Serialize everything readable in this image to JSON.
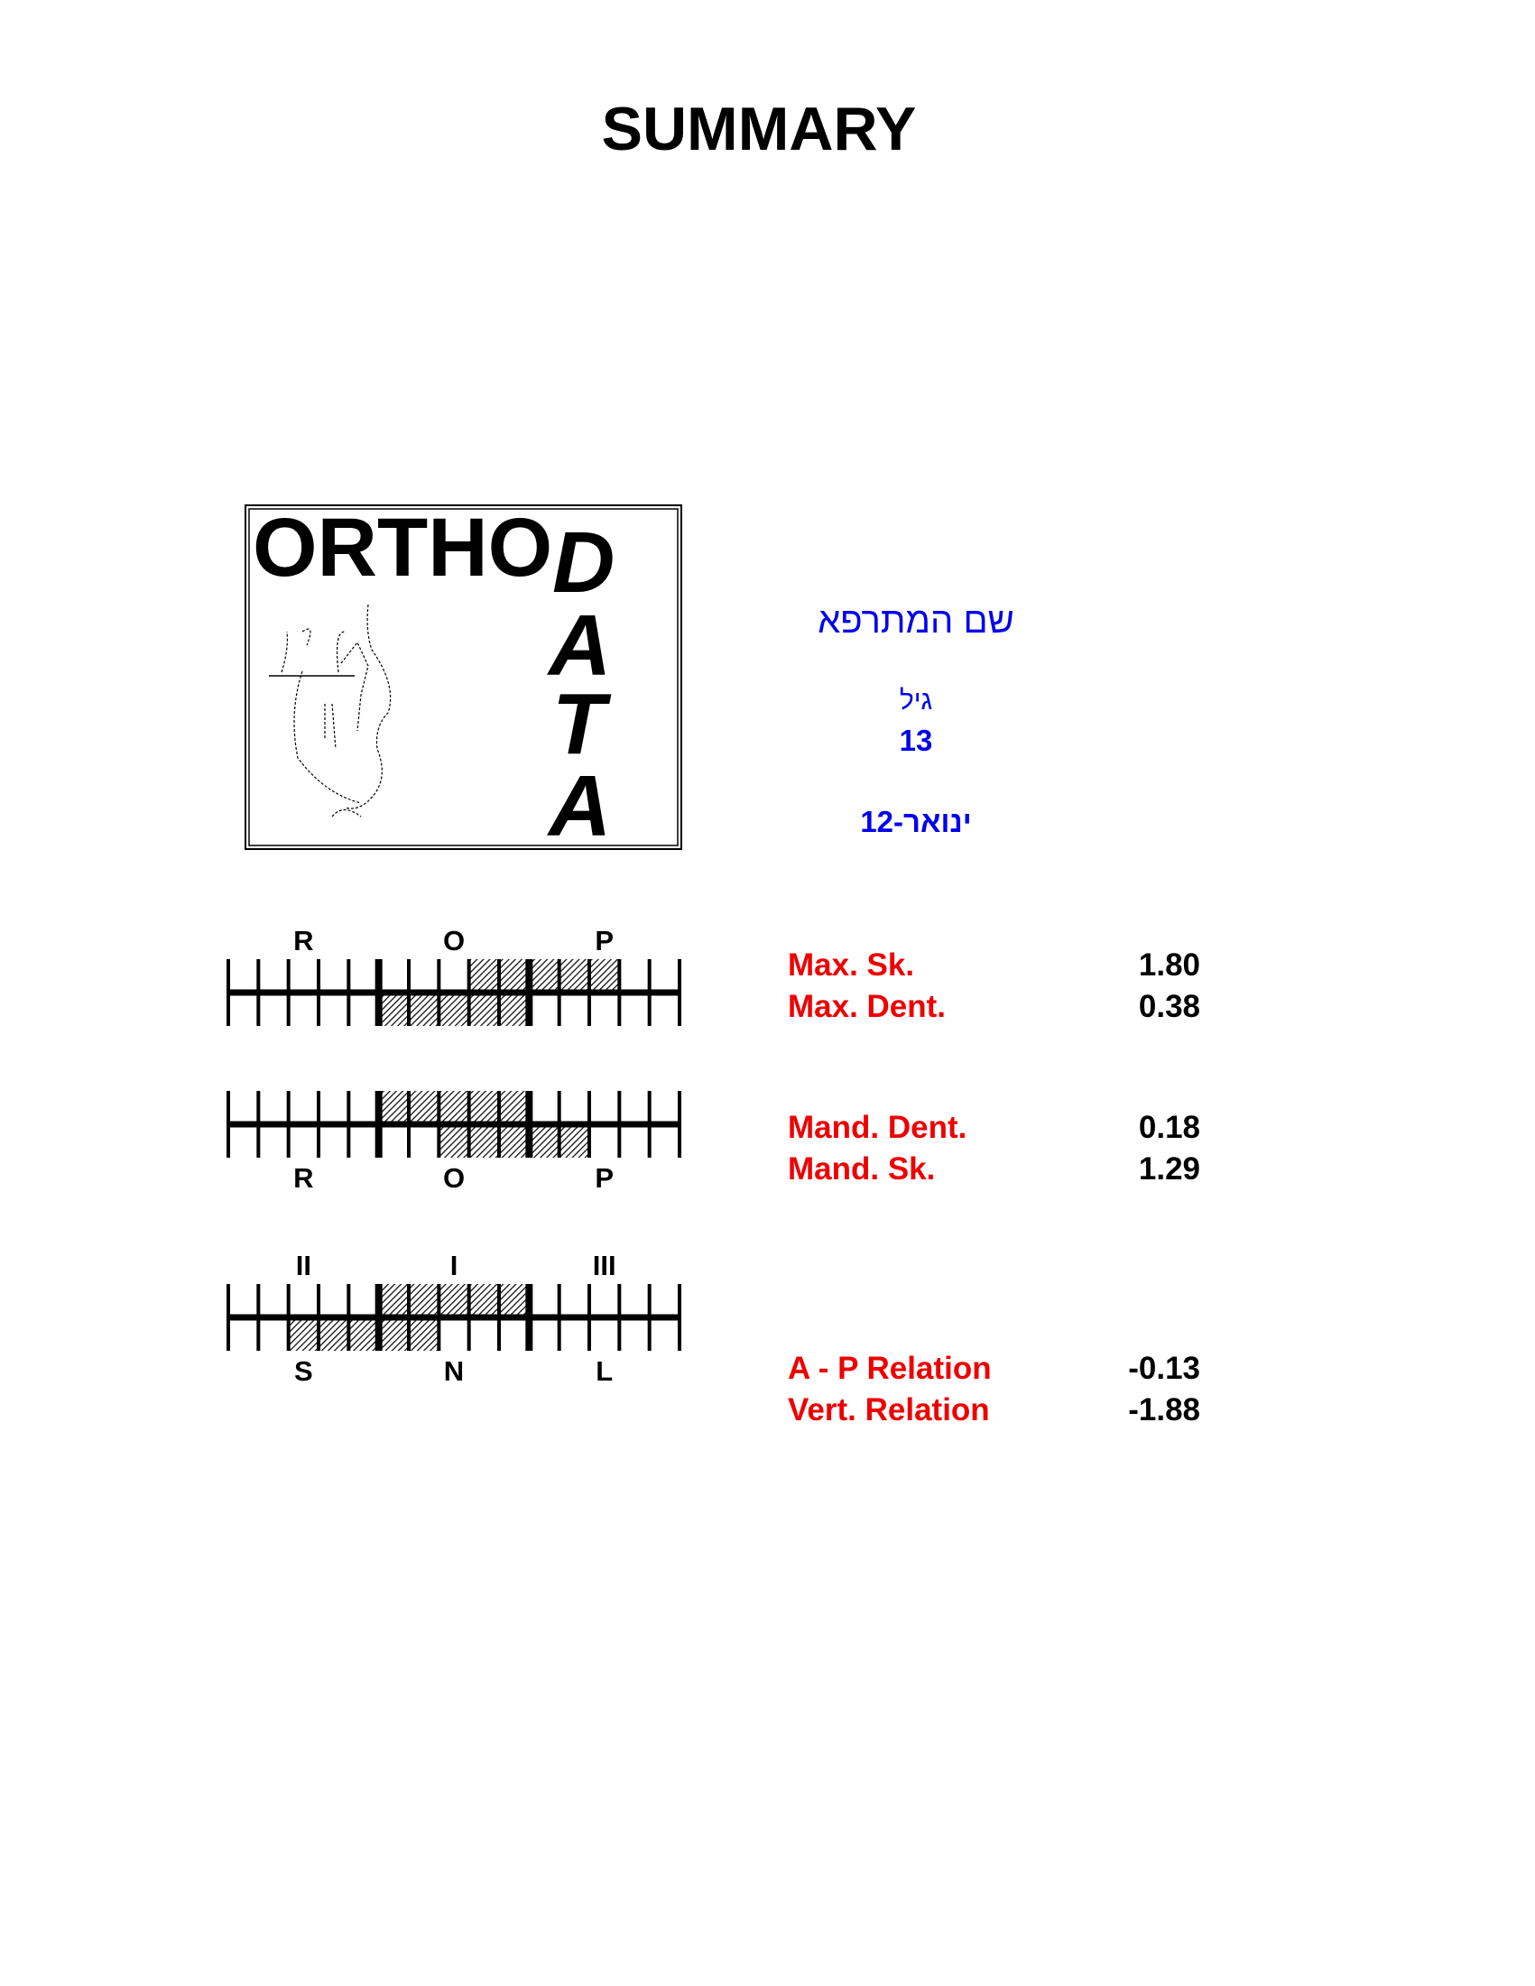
{
  "title": "SUMMARY",
  "logo": {
    "line1": "ORTHO",
    "line2": "DATA"
  },
  "patient": {
    "name": "שם המתרפא",
    "age_label": "גיל",
    "age": "13",
    "date": "12-ינואר"
  },
  "colors": {
    "label": "#ee0000",
    "patient_text": "#0000ee",
    "value": "#000000"
  },
  "scales": [
    {
      "top_labels": [
        "R",
        "O",
        "P"
      ],
      "bottom_labels": [],
      "cells": 15,
      "top_fill": [
        8,
        13
      ],
      "bottom_fill": [
        5,
        10
      ],
      "rows": [
        {
          "label": "Max. Sk.",
          "value": "1.80"
        },
        {
          "label": "Max. Dent.",
          "value": "0.38"
        }
      ]
    },
    {
      "top_labels": [],
      "bottom_labels": [
        "R",
        "O",
        "P"
      ],
      "cells": 15,
      "top_fill": [
        5,
        10
      ],
      "bottom_fill": [
        7,
        12
      ],
      "rows": [
        {
          "label": "Mand. Dent.",
          "value": "0.18"
        },
        {
          "label": "Mand. Sk.",
          "value": "1.29"
        }
      ]
    },
    {
      "top_labels": [
        "II",
        "I",
        "III"
      ],
      "bottom_labels": [
        "S",
        "N",
        "L"
      ],
      "cells": 15,
      "top_fill": [
        5,
        10
      ],
      "bottom_fill": [
        2,
        7
      ],
      "rows": [
        {
          "label": "A - P Relation",
          "value": "-0.13"
        },
        {
          "label": "Vert. Relation",
          "value": "-1.88"
        }
      ]
    }
  ]
}
